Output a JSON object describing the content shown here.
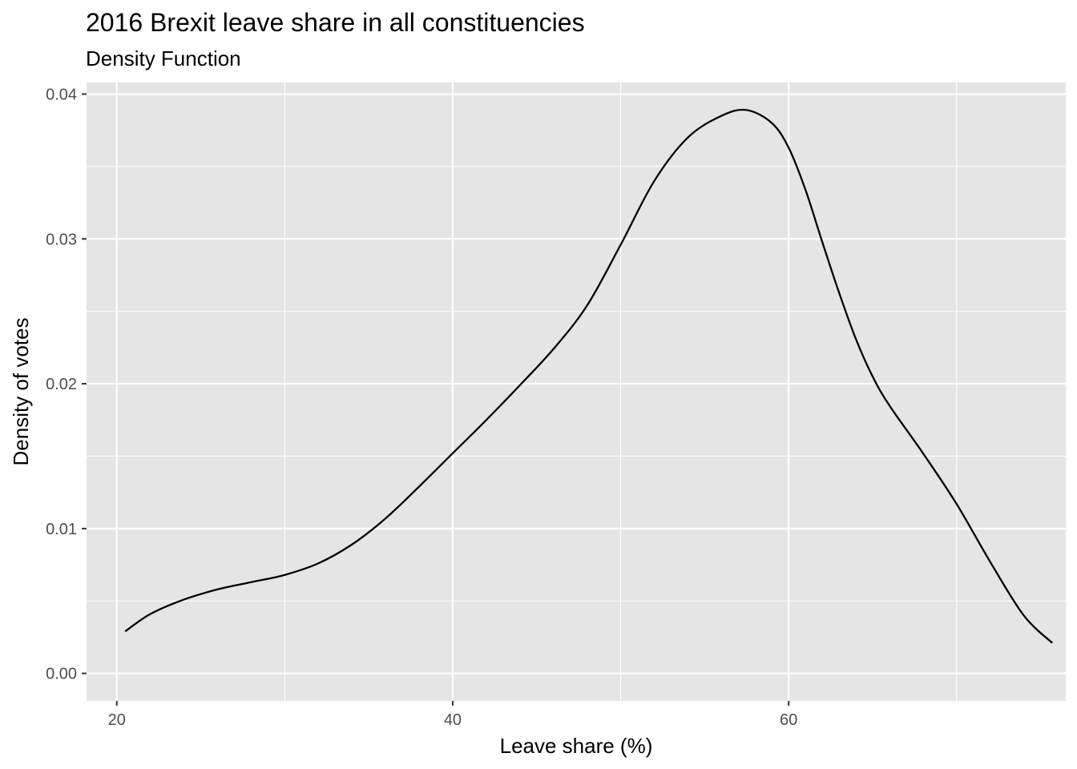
{
  "chart_data": {
    "type": "line",
    "title": "2016 Brexit leave share in all constituencies",
    "subtitle": "Density Function",
    "xlabel": "Leave share (%)",
    "ylabel": "Density of votes",
    "xlim": [
      18.2,
      76.5
    ],
    "ylim": [
      -0.0019,
      0.0408
    ],
    "x_ticks": [
      20,
      40,
      60
    ],
    "x_tick_labels": [
      "20",
      "40",
      "60"
    ],
    "y_ticks": [
      0.0,
      0.01,
      0.02,
      0.03,
      0.04
    ],
    "y_tick_labels": [
      "0.00",
      "0.01",
      "0.02",
      "0.03",
      "0.04"
    ],
    "grid": true,
    "legend": "none",
    "colors": {
      "panel": "#e5e5e5",
      "grid": "#ffffff",
      "line": "#000000",
      "tick_text": "#4d4d4d",
      "tick_mark": "#333333"
    },
    "series": [
      {
        "x": [
          20.5,
          22,
          24,
          26,
          28,
          30,
          32,
          34,
          36,
          38,
          40,
          42,
          44,
          46,
          48,
          50,
          52,
          54,
          56,
          57.5,
          59,
          60,
          61,
          62,
          63,
          64,
          65,
          66,
          68,
          70,
          72,
          74,
          75.7
        ],
        "y": [
          0.0029,
          0.0041,
          0.0051,
          0.0058,
          0.0063,
          0.0068,
          0.0076,
          0.0089,
          0.0107,
          0.0129,
          0.0152,
          0.0175,
          0.0199,
          0.0224,
          0.0254,
          0.0296,
          0.034,
          0.037,
          0.0385,
          0.0389,
          0.038,
          0.0363,
          0.0334,
          0.0298,
          0.0263,
          0.0231,
          0.0205,
          0.0185,
          0.0152,
          0.0117,
          0.0077,
          0.004,
          0.0021
        ]
      }
    ]
  }
}
